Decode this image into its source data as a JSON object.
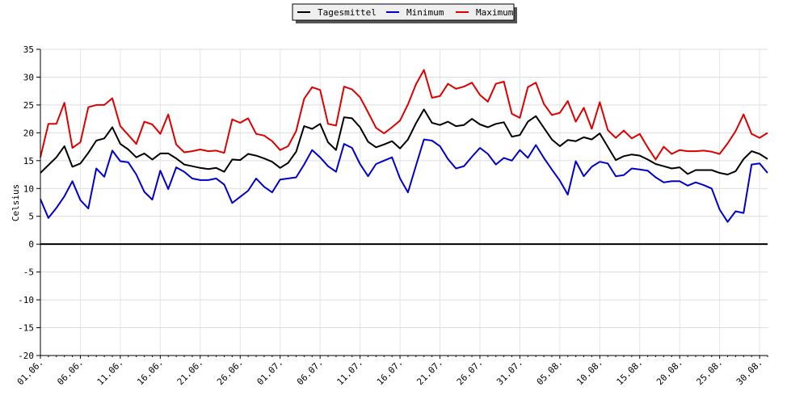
{
  "chart_data": {
    "type": "line",
    "title": "",
    "xlabel": "",
    "ylabel": "Celsius",
    "ylim": [
      -20,
      35
    ],
    "yticks": [
      35,
      30,
      25,
      20,
      15,
      10,
      5,
      0,
      -5,
      -10,
      -15,
      -20
    ],
    "grid": true,
    "legend_position": "top-center",
    "x_tick_labels": [
      "01.06.",
      "06.06.",
      "11.06.",
      "16.06.",
      "21.06.",
      "26.06.",
      "01.07.",
      "06.07.",
      "11.07.",
      "16.07.",
      "21.07.",
      "26.07.",
      "31.07.",
      "05.08.",
      "10.08.",
      "15.08.",
      "20.08.",
      "25.08.",
      "30.08."
    ],
    "x_tick_index": [
      0,
      5,
      10,
      15,
      20,
      25,
      30,
      35,
      40,
      45,
      50,
      55,
      60,
      65,
      70,
      75,
      80,
      85,
      90
    ],
    "series": [
      {
        "name": "Tagesmittel",
        "color": "#000000",
        "values": [
          12.8,
          14.2,
          15.6,
          17.6,
          13.9,
          14.5,
          16.4,
          18.6,
          19.0,
          21.0,
          18.0,
          17.0,
          15.6,
          16.3,
          15.2,
          16.3,
          16.3,
          15.4,
          14.3,
          14.0,
          13.7,
          13.5,
          13.7,
          13.0,
          15.2,
          15.1,
          16.2,
          15.9,
          15.4,
          14.8,
          13.7,
          14.6,
          16.6,
          21.2,
          20.7,
          21.6,
          18.3,
          16.9,
          22.8,
          22.6,
          21.0,
          18.4,
          17.4,
          17.9,
          18.5,
          17.2,
          18.8,
          21.7,
          24.2,
          21.8,
          21.4,
          22.0,
          21.2,
          21.4,
          22.5,
          21.5,
          21.0,
          21.6,
          21.9,
          19.3,
          19.6,
          22.0,
          23.0,
          20.9,
          18.8,
          17.6,
          18.7,
          18.5,
          19.2,
          18.8,
          19.9,
          17.5,
          15.1,
          15.8,
          16.1,
          15.9,
          15.2,
          14.4,
          14.0,
          13.6,
          13.8,
          12.6,
          13.3,
          13.3,
          13.3,
          12.8,
          12.5,
          13.1,
          15.3,
          16.7,
          16.2,
          15.3
        ]
      },
      {
        "name": "Minimum",
        "color": "#0000cc",
        "values": [
          8.1,
          4.7,
          6.5,
          8.6,
          11.3,
          7.9,
          6.4,
          13.6,
          12.1,
          16.8,
          14.9,
          14.7,
          12.5,
          9.4,
          8.0,
          13.2,
          9.9,
          13.8,
          13.0,
          11.8,
          11.5,
          11.5,
          11.8,
          10.7,
          7.4,
          8.5,
          9.6,
          11.8,
          10.3,
          9.3,
          11.6,
          11.8,
          12.0,
          14.3,
          16.9,
          15.6,
          14.0,
          13.0,
          18.0,
          17.3,
          14.4,
          12.2,
          14.4,
          15.0,
          15.6,
          11.8,
          9.3,
          14.1,
          18.8,
          18.6,
          17.6,
          15.3,
          13.6,
          14.0,
          15.7,
          17.3,
          16.2,
          14.3,
          15.5,
          15.0,
          16.9,
          15.5,
          17.8,
          15.5,
          13.4,
          11.4,
          8.9,
          14.9,
          12.2,
          13.9,
          14.8,
          14.5,
          12.2,
          12.4,
          13.6,
          13.4,
          13.2,
          12.0,
          11.1,
          11.3,
          11.3,
          10.5,
          11.1,
          10.6,
          10.0,
          6.2,
          4.0,
          5.9,
          5.6,
          14.3,
          14.5,
          12.8
        ]
      },
      {
        "name": "Maximum",
        "color": "#dd0000",
        "values": [
          15.6,
          21.6,
          21.6,
          25.4,
          17.3,
          18.3,
          24.6,
          25.0,
          25.0,
          26.2,
          21.2,
          19.6,
          18.0,
          22.0,
          21.5,
          19.8,
          23.3,
          17.9,
          16.5,
          16.7,
          17.0,
          16.7,
          16.8,
          16.4,
          22.4,
          21.8,
          22.6,
          19.8,
          19.5,
          18.5,
          16.9,
          17.6,
          20.3,
          26.1,
          28.2,
          27.7,
          21.6,
          21.3,
          28.3,
          27.8,
          26.4,
          23.7,
          20.9,
          19.9,
          21.0,
          22.2,
          25.1,
          28.7,
          31.3,
          26.3,
          26.6,
          28.8,
          27.9,
          28.3,
          29.0,
          26.8,
          25.6,
          28.8,
          29.2,
          23.4,
          22.7,
          28.2,
          29.0,
          25.2,
          23.2,
          23.6,
          25.7,
          22.0,
          24.5,
          20.7,
          25.5,
          20.5,
          19.1,
          20.4,
          19.0,
          19.8,
          17.4,
          15.2,
          17.5,
          16.2,
          16.9,
          16.7,
          16.7,
          16.8,
          16.6,
          16.2,
          18.1,
          20.3,
          23.3,
          19.8,
          19.1,
          20.0
        ]
      }
    ]
  }
}
